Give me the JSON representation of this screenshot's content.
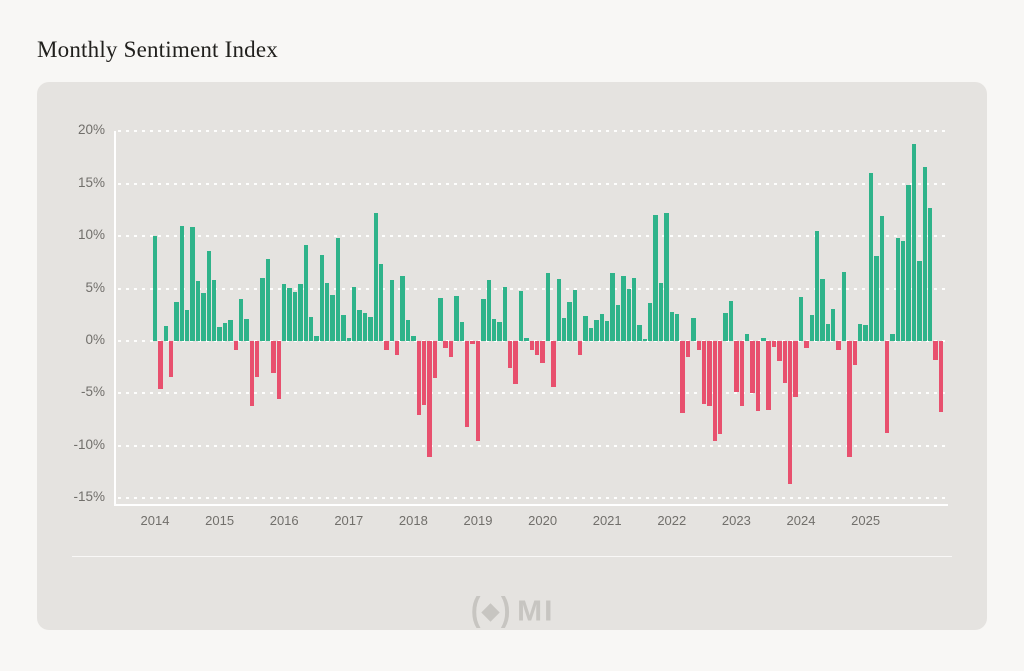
{
  "page": {
    "title": "Monthly Sentiment Index"
  },
  "footer": {
    "logo": {
      "paren_open": "(",
      "paren_close": ")",
      "diamond_icon": "diamond-icon",
      "text": "MI"
    }
  },
  "chart_data": {
    "type": "bar",
    "title": "Monthly Sentiment Index",
    "unit": "%",
    "start_month": "2014-01",
    "months_per_bar": 1,
    "x_tick_labels": [
      "2014",
      "2015",
      "2016",
      "2017",
      "2018",
      "2019",
      "2020",
      "2021",
      "2022",
      "2023",
      "2024",
      "2025"
    ],
    "y_ticks": [
      20,
      15,
      10,
      5,
      0,
      -5,
      -10,
      -15
    ],
    "y_tick_labels": [
      "20%",
      "15%",
      "10%",
      "5%",
      "0%",
      "-5%",
      "-10%",
      "-15%"
    ],
    "ylim": [
      -15.5,
      20
    ],
    "grid": "horizontal-dotted-white",
    "legend": "none",
    "colors": {
      "positive": "#2fb38a",
      "negative": "#e8506e",
      "panel_bg": "#e5e3e0",
      "page_bg": "#f8f7f5",
      "axis": "#ffffff",
      "tick_text": "#716f6b"
    },
    "monthly_values": [
      10.0,
      -4.6,
      1.4,
      -3.4,
      3.7,
      11.0,
      3.0,
      10.9,
      5.7,
      4.6,
      8.6,
      5.8,
      1.3,
      1.7,
      2.0,
      -0.9,
      4.0,
      2.1,
      -6.2,
      -3.4,
      6.0,
      7.8,
      -3.1,
      -5.5,
      5.4,
      5.1,
      4.7,
      5.4,
      9.2,
      2.3,
      0.5,
      8.2,
      5.5,
      4.4,
      9.8,
      2.5,
      0.3,
      5.2,
      3.0,
      2.7,
      2.3,
      12.2,
      7.3,
      -0.9,
      5.8,
      -1.3,
      6.2,
      2.0,
      0.5,
      -7.1,
      -6.1,
      -11.1,
      -3.5,
      4.1,
      -0.7,
      -1.5,
      4.3,
      1.8,
      -8.2,
      -0.3,
      -9.5,
      4.0,
      5.8,
      2.1,
      1.8,
      5.2,
      -2.6,
      -4.1,
      4.8,
      0.3,
      -0.9,
      -1.3,
      -2.1,
      6.5,
      -4.4,
      5.9,
      2.2,
      3.7,
      4.9,
      -1.3,
      2.4,
      1.2,
      2.0,
      2.6,
      1.9,
      6.5,
      3.4,
      6.2,
      5.0,
      6.0,
      1.5,
      0.2,
      3.6,
      12.0,
      5.5,
      12.2,
      2.8,
      2.6,
      -6.9,
      -1.5,
      2.2,
      -0.9,
      -6.0,
      -6.2,
      -9.5,
      -8.9,
      2.7,
      3.8,
      -4.9,
      -6.2,
      0.7,
      -5.0,
      -6.7,
      0.3,
      -6.6,
      -0.6,
      -1.9,
      -4.0,
      -13.6,
      -5.3,
      4.2,
      -0.7,
      2.5,
      10.5,
      5.9,
      1.6,
      3.1,
      -0.9,
      6.6,
      -11.1,
      -2.3,
      1.6,
      1.5,
      16.0,
      8.1,
      11.9,
      -8.8,
      0.7,
      9.8,
      9.5,
      14.9,
      18.8,
      7.6,
      16.6,
      12.7,
      -1.8,
      -6.8
    ]
  }
}
